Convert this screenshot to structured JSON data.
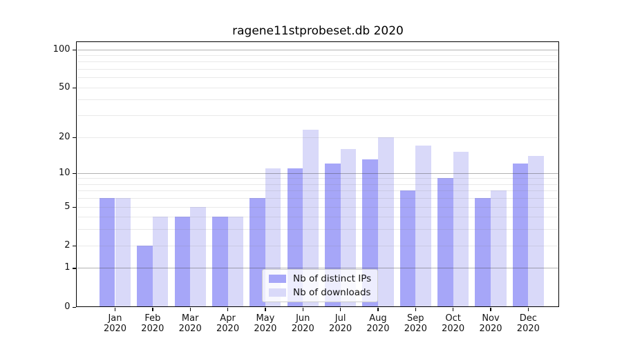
{
  "title": "ragene11stprobeset.db 2020",
  "chart_data": {
    "type": "bar",
    "title": "ragene11stprobeset.db 2020",
    "categories": [
      "Jan 2020",
      "Feb 2020",
      "Mar 2020",
      "Apr 2020",
      "May 2020",
      "Jun 2020",
      "Jul 2020",
      "Aug 2020",
      "Sep 2020",
      "Oct 2020",
      "Nov 2020",
      "Dec 2020"
    ],
    "x_tick_labels": [
      [
        "Jan",
        "2020"
      ],
      [
        "Feb",
        "2020"
      ],
      [
        "Mar",
        "2020"
      ],
      [
        "Apr",
        "2020"
      ],
      [
        "May",
        "2020"
      ],
      [
        "Jun",
        "2020"
      ],
      [
        "Jul",
        "2020"
      ],
      [
        "Aug",
        "2020"
      ],
      [
        "Sep",
        "2020"
      ],
      [
        "Oct",
        "2020"
      ],
      [
        "Nov",
        "2020"
      ],
      [
        "Dec",
        "2020"
      ]
    ],
    "series": [
      {
        "name": "Nb of distinct IPs",
        "color": "#a6a6f8",
        "values": [
          6,
          2,
          4,
          4,
          6,
          11,
          12,
          13,
          7,
          9,
          6,
          12
        ]
      },
      {
        "name": "Nb of downloads",
        "color": "#d9d9f9",
        "values": [
          6,
          4,
          5,
          4,
          11,
          23,
          16,
          20,
          17,
          15,
          7,
          14
        ]
      }
    ],
    "yscale": "log1p",
    "ylim": [
      0,
      113.5
    ],
    "y_ticks": [
      0,
      1,
      2,
      5,
      10,
      20,
      50,
      100
    ],
    "y_major_gridlines": [
      1,
      10,
      100
    ],
    "y_minor_gridlines": [
      2,
      3,
      4,
      5,
      6,
      7,
      8,
      9,
      20,
      30,
      40,
      50,
      60,
      70,
      80,
      90
    ],
    "grid": "on",
    "legend_position": "lower center"
  },
  "colors": {
    "bar_distinct_ips": "#a6a6f8",
    "bar_downloads": "#d9d9f9",
    "major_gridline": "rgba(60,60,60,0.40)",
    "minor_gridline": "rgba(120,120,120,0.16)",
    "spine": "#000000",
    "tick_text": "#111111"
  }
}
